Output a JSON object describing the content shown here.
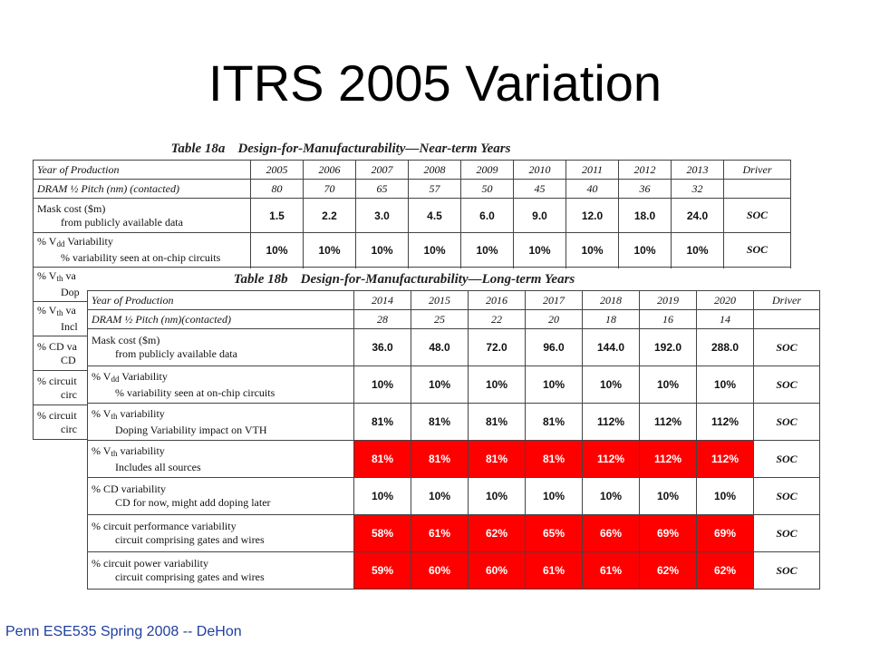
{
  "slide": {
    "title": "ITRS 2005 Variation",
    "footer": "Penn ESE535 Spring 2008 -- DeHon"
  },
  "table_a": {
    "caption_number": "Table 18a",
    "caption_title": "Design-for-Manufacturability—Near-term Years",
    "year_label": "Year of Production",
    "pitch_label": "DRAM ½ Pitch (nm) (contacted)",
    "driver_label": "Driver",
    "years": [
      "2005",
      "2006",
      "2007",
      "2008",
      "2009",
      "2010",
      "2011",
      "2012",
      "2013"
    ],
    "pitches": [
      "80",
      "70",
      "65",
      "57",
      "50",
      "45",
      "40",
      "36",
      "32"
    ],
    "rows": [
      {
        "label_main": "Mask cost ($m)",
        "label_sub": "from publicly available data",
        "values": [
          "1.5",
          "2.2",
          "3.0",
          "4.5",
          "6.0",
          "9.0",
          "12.0",
          "18.0",
          "24.0"
        ],
        "driver": "SOC"
      },
      {
        "label_pre": "% V",
        "label_index": "dd",
        "label_post": " Variability",
        "label_sub": "% variability seen at on-chip circuits",
        "values": [
          "10%",
          "10%",
          "10%",
          "10%",
          "10%",
          "10%",
          "10%",
          "10%",
          "10%"
        ],
        "driver": "SOC"
      }
    ],
    "hidden_rows": [
      {
        "label_pre": "% V",
        "label_index": "th",
        "label_post": " va",
        "label_sub": "Dop"
      },
      {
        "label_pre": "% V",
        "label_index": "th",
        "label_post": " va",
        "label_sub": "Incl"
      },
      {
        "label_main": "% CD va",
        "label_sub": "CD"
      },
      {
        "label_main": "% circuit",
        "label_sub": "circ"
      },
      {
        "label_main": "% circuit",
        "label_sub": "circ"
      }
    ]
  },
  "table_b": {
    "caption_number": "Table 18b",
    "caption_title": "Design-for-Manufacturability—Long-term Years",
    "year_label": "Year of Production",
    "pitch_label": "DRAM ½ Pitch (nm)(contacted)",
    "driver_label": "Driver",
    "years": [
      "2014",
      "2015",
      "2016",
      "2017",
      "2018",
      "2019",
      "2020"
    ],
    "pitches": [
      "28",
      "25",
      "22",
      "20",
      "18",
      "16",
      "14"
    ],
    "rows": [
      {
        "label_main": "Mask cost ($m)",
        "label_sub": "from publicly available data",
        "values": [
          "36.0",
          "48.0",
          "72.0",
          "96.0",
          "144.0",
          "192.0",
          "288.0"
        ],
        "highlight": false,
        "driver": "SOC"
      },
      {
        "label_pre": "% V",
        "label_index": "dd",
        "label_post": " Variability",
        "label_sub": "% variability seen at on-chip circuits",
        "values": [
          "10%",
          "10%",
          "10%",
          "10%",
          "10%",
          "10%",
          "10%"
        ],
        "highlight": false,
        "driver": "SOC"
      },
      {
        "label_pre": "% V",
        "label_index": "th",
        "label_post": " variability",
        "label_sub": "Doping Variability impact on VTH",
        "values": [
          "81%",
          "81%",
          "81%",
          "81%",
          "112%",
          "112%",
          "112%"
        ],
        "highlight": false,
        "driver": "SOC"
      },
      {
        "label_pre": "% V",
        "label_index": "th",
        "label_post": " variability",
        "label_sub": "Includes all sources",
        "values": [
          "81%",
          "81%",
          "81%",
          "81%",
          "112%",
          "112%",
          "112%"
        ],
        "highlight": true,
        "driver": "SOC"
      },
      {
        "label_main": "% CD variability",
        "label_sub": "CD for now, might add doping later",
        "values": [
          "10%",
          "10%",
          "10%",
          "10%",
          "10%",
          "10%",
          "10%"
        ],
        "highlight": false,
        "driver": "SOC"
      },
      {
        "label_main": "% circuit performance variability",
        "label_sub": "circuit comprising gates and wires",
        "values": [
          "58%",
          "61%",
          "62%",
          "65%",
          "66%",
          "69%",
          "69%"
        ],
        "highlight": true,
        "driver": "SOC"
      },
      {
        "label_main": "% circuit power variability",
        "label_sub": "circuit comprising gates and wires",
        "values": [
          "59%",
          "60%",
          "60%",
          "61%",
          "61%",
          "62%",
          "62%"
        ],
        "highlight": true,
        "driver": "SOC"
      }
    ]
  },
  "colors": {
    "highlight": "#ff0000",
    "highlight_text": "#ffffff",
    "footer_text": "#1f3f9f",
    "title_text": "#000000"
  }
}
